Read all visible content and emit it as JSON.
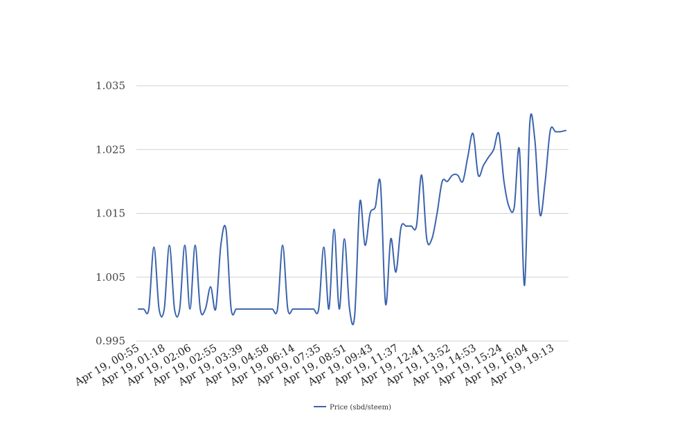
{
  "chart_data": {
    "type": "line",
    "title": "",
    "xlabel": "",
    "ylabel": "",
    "ylim": [
      0.995,
      1.035
    ],
    "yticks": [
      "0.995",
      "1.005",
      "1.015",
      "1.025",
      "1.035"
    ],
    "grid": true,
    "legend_placement": "bottom-center",
    "x_tick_labels": [
      "Apr 19, 00:55",
      "Apr 19, 01:18",
      "Apr 19, 02:06",
      "Apr 19, 02:55",
      "Apr 19, 03:39",
      "Apr 19, 04:58",
      "Apr 19, 06:14",
      "Apr 19, 07:35",
      "Apr 19, 08:51",
      "Apr 19, 09:43",
      "Apr 19, 11:37",
      "Apr 19, 12:41",
      "Apr 19, 13:52",
      "Apr 19, 14:53",
      "Apr 19, 15:24",
      "Apr 19, 16:04",
      "Apr 19, 19:13"
    ],
    "series": [
      {
        "name": "Price (sbd/steem)",
        "color": "#3a63ad",
        "values": [
          1.0,
          1.0,
          1.0,
          1.0097,
          1.0,
          1.0,
          1.01,
          1.0,
          1.0,
          1.01,
          1.0,
          1.01,
          1.0,
          1.0,
          1.0035,
          1.0,
          1.01,
          1.0125,
          1.0,
          1.0,
          1.0,
          1.0,
          1.0,
          1.0,
          1.0,
          1.0,
          1.0,
          1.0,
          1.01,
          1.0,
          1.0,
          1.0,
          1.0,
          1.0,
          1.0,
          1.0,
          1.0097,
          1.0,
          1.0125,
          1.0,
          1.011,
          1.0,
          0.999,
          1.0168,
          1.01,
          1.015,
          1.016,
          1.0197,
          1.0008,
          1.011,
          1.0058,
          1.0128,
          1.013,
          1.013,
          1.013,
          1.021,
          1.011,
          1.011,
          1.015,
          1.02,
          1.02,
          1.021,
          1.021,
          1.02,
          1.024,
          1.0275,
          1.021,
          1.0225,
          1.0238,
          1.025,
          1.0275,
          1.02,
          1.016,
          1.016,
          1.025,
          1.0037,
          1.029,
          1.0265,
          1.0148,
          1.02,
          1.028,
          1.0278,
          1.0278,
          1.028
        ]
      }
    ]
  }
}
